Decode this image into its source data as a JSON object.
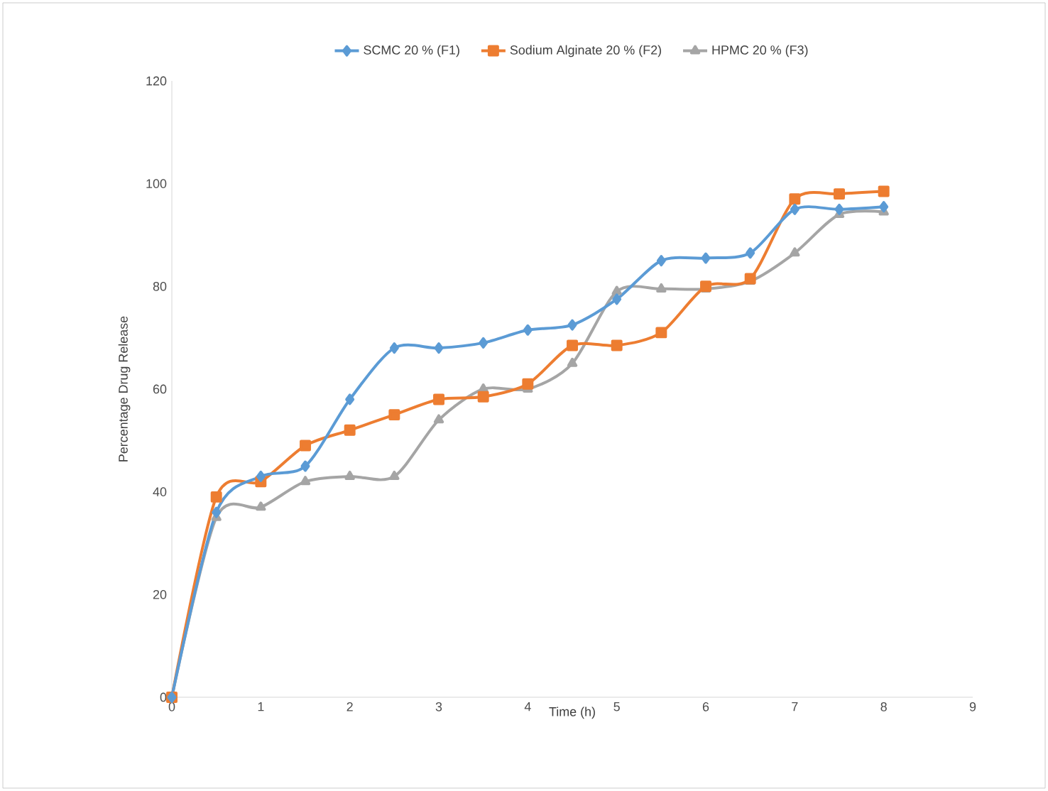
{
  "chart_data": {
    "type": "line",
    "xlabel": "Time (h)",
    "ylabel": "Percentage Drug Release",
    "x": [
      0,
      0.5,
      1,
      1.5,
      2,
      2.5,
      3,
      3.5,
      4,
      4.5,
      5,
      5.5,
      6,
      6.5,
      7,
      7.5,
      8
    ],
    "series": [
      {
        "name": "SCMC 20 % (F1)",
        "color": "#5b9bd5",
        "marker": "diamond",
        "values": [
          0,
          36,
          43,
          45,
          58,
          68,
          68,
          69,
          71.5,
          72.5,
          77.5,
          85,
          85.5,
          86.5,
          95,
          95,
          95.5
        ]
      },
      {
        "name": "Sodium Alginate 20 % (F2)",
        "color": "#ed7d31",
        "marker": "square",
        "values": [
          0,
          39,
          42,
          49,
          52,
          55,
          58,
          58.5,
          61,
          68.5,
          68.5,
          71,
          80,
          81.5,
          97,
          98,
          98.5
        ]
      },
      {
        "name": "HPMC 20 % (F3)",
        "color": "#a5a5a5",
        "marker": "triangle",
        "values": [
          0,
          35,
          37,
          42,
          43,
          43,
          54,
          60,
          60,
          65,
          79,
          79.5,
          79.5,
          81,
          86.5,
          94,
          94.5
        ]
      }
    ],
    "xlim": [
      0,
      9
    ],
    "xticks": [
      0,
      1,
      2,
      3,
      4,
      5,
      6,
      7,
      8,
      9
    ],
    "ylim": [
      0,
      120
    ],
    "yticks": [
      0,
      20,
      40,
      60,
      80,
      100,
      120
    ],
    "grid": false,
    "legend": "top",
    "line_style": "solid"
  }
}
